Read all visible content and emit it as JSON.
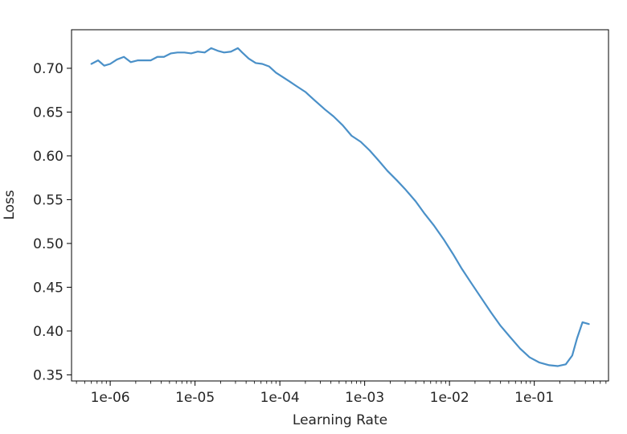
{
  "chart_data": {
    "type": "line",
    "title": "",
    "xlabel": "Learning Rate",
    "ylabel": "Loss",
    "xscale": "log",
    "xlim": [
      3.5e-07,
      0.75
    ],
    "ylim": [
      0.343,
      0.744
    ],
    "grid": false,
    "legend": "none",
    "line_color": "#4a90c8",
    "x_ticks": [
      {
        "value": 1e-06,
        "label": "1e-06"
      },
      {
        "value": 1e-05,
        "label": "1e-05"
      },
      {
        "value": 0.0001,
        "label": "1e-04"
      },
      {
        "value": 0.001,
        "label": "1e-03"
      },
      {
        "value": 0.01,
        "label": "1e-02"
      },
      {
        "value": 0.1,
        "label": "1e-01"
      }
    ],
    "y_ticks": [
      {
        "value": 0.35,
        "label": "0.35"
      },
      {
        "value": 0.4,
        "label": "0.40"
      },
      {
        "value": 0.45,
        "label": "0.45"
      },
      {
        "value": 0.5,
        "label": "0.50"
      },
      {
        "value": 0.55,
        "label": "0.55"
      },
      {
        "value": 0.6,
        "label": "0.60"
      },
      {
        "value": 0.65,
        "label": "0.65"
      },
      {
        "value": 0.7,
        "label": "0.70"
      }
    ],
    "series": [
      {
        "x": [
          6e-07,
          7.2e-07,
          8.5e-07,
          1e-06,
          1.2e-06,
          1.45e-06,
          1.75e-06,
          2.1e-06,
          2.5e-06,
          3e-06,
          3.6e-06,
          4.3e-06,
          5.2e-06,
          6.2e-06,
          7.5e-06,
          9e-06,
          1.08e-05,
          1.3e-05,
          1.55e-05,
          1.85e-05,
          2.2e-05,
          2.65e-05,
          3.2e-05,
          3.6e-05,
          4.3e-05,
          5.2e-05,
          6.2e-05,
          7.5e-05,
          9e-05,
          0.000108,
          0.00013,
          0.000155,
          0.0002,
          0.00026,
          0.00034,
          0.00043,
          0.00055,
          0.0007,
          0.0009,
          0.00115,
          0.00145,
          0.00185,
          0.0024,
          0.003,
          0.004,
          0.005,
          0.0065,
          0.0085,
          0.011,
          0.014,
          0.018,
          0.024,
          0.031,
          0.04,
          0.052,
          0.068,
          0.088,
          0.115,
          0.15,
          0.19,
          0.235,
          0.28,
          0.32,
          0.37,
          0.44
        ],
        "y": [
          0.705,
          0.709,
          0.703,
          0.705,
          0.71,
          0.713,
          0.707,
          0.709,
          0.709,
          0.709,
          0.713,
          0.713,
          0.717,
          0.718,
          0.718,
          0.717,
          0.719,
          0.718,
          0.723,
          0.72,
          0.718,
          0.719,
          0.723,
          0.718,
          0.711,
          0.706,
          0.705,
          0.702,
          0.695,
          0.69,
          0.685,
          0.68,
          0.673,
          0.663,
          0.653,
          0.645,
          0.635,
          0.623,
          0.616,
          0.606,
          0.595,
          0.583,
          0.572,
          0.562,
          0.548,
          0.535,
          0.521,
          0.505,
          0.488,
          0.471,
          0.455,
          0.437,
          0.421,
          0.406,
          0.393,
          0.38,
          0.37,
          0.364,
          0.361,
          0.36,
          0.362,
          0.372,
          0.392,
          0.41,
          0.408
        ]
      }
    ]
  }
}
